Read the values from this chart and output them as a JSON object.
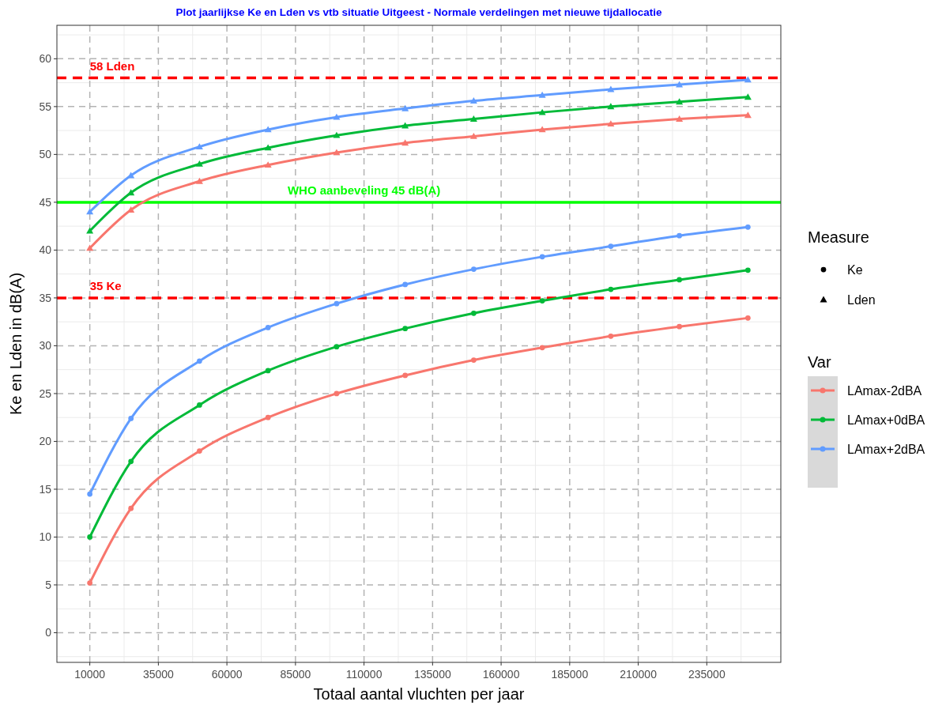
{
  "chart_data": {
    "type": "line",
    "title": "Plot jaarlijkse Ke en Lden vs vtb situatie Uitgeest - Normale verdelingen met nieuwe tijdallocatie",
    "xlabel": "Totaal aantal vluchten per jaar",
    "ylabel": "Ke en Lden in dB(A)",
    "legend_title": "Var",
    "x": [
      10000,
      25000,
      50000,
      75000,
      100000,
      125000,
      150000,
      175000,
      200000,
      225000,
      250000
    ],
    "series": [
      {
        "name": "LAmax-2dBA",
        "color": "#f8766d",
        "marker": "circle",
        "values": [
          5.2,
          13.0,
          19.0,
          22.5,
          25.0,
          26.9,
          28.5,
          29.8,
          31.0,
          32.0,
          32.9
        ]
      },
      {
        "name": "LAmax+0dBA",
        "color": "#00ba38",
        "marker": "circle",
        "values": [
          10.0,
          17.9,
          23.8,
          27.4,
          29.9,
          31.8,
          33.4,
          34.7,
          35.9,
          36.9,
          37.9
        ]
      },
      {
        "name": "LAmax+2dBA",
        "color": "#619cff",
        "marker": "circle",
        "values": [
          14.5,
          22.4,
          28.4,
          31.9,
          34.4,
          36.4,
          38.0,
          39.3,
          40.4,
          41.5,
          42.4
        ]
      },
      {
        "color": "#f8766d",
        "marker": "triangle",
        "values": [
          40.2,
          44.2,
          47.2,
          48.9,
          50.2,
          51.2,
          51.9,
          52.6,
          53.2,
          53.7,
          54.1
        ]
      },
      {
        "color": "#00ba38",
        "marker": "triangle",
        "values": [
          42.0,
          46.0,
          49.0,
          50.7,
          52.0,
          53.0,
          53.7,
          54.4,
          55.0,
          55.5,
          56.0
        ]
      },
      {
        "color": "#619cff",
        "marker": "triangle",
        "values": [
          44.0,
          47.8,
          50.8,
          52.6,
          53.9,
          54.8,
          55.6,
          56.2,
          56.8,
          57.3,
          57.8
        ]
      }
    ],
    "annotations": [
      "Measure",
      "Ke",
      "Lden"
    ],
    "ref_lines": [
      {
        "axis": "y",
        "value": 58,
        "label": "58 Lden",
        "color": "#ff0000",
        "line_style": "dashed"
      },
      {
        "axis": "y",
        "value": 45,
        "label": "WHO aanbeveling 45 dB(A)",
        "color": "#00ff00",
        "line_style": "solid"
      },
      {
        "axis": "y",
        "value": 35,
        "label": "35 Ke",
        "color": "#ff0000",
        "line_style": "dashed"
      }
    ],
    "xlim": [
      -2000,
      262000
    ],
    "xticks": [
      10000,
      35000,
      60000,
      85000,
      110000,
      135000,
      160000,
      185000,
      210000,
      235000
    ],
    "ylim": [
      -3.1,
      63.5
    ],
    "yticks": [
      0,
      5,
      10,
      15,
      20,
      25,
      30,
      35,
      40,
      45,
      50,
      55,
      60
    ],
    "grid": true,
    "legend": "right",
    "line_style": "solid"
  }
}
